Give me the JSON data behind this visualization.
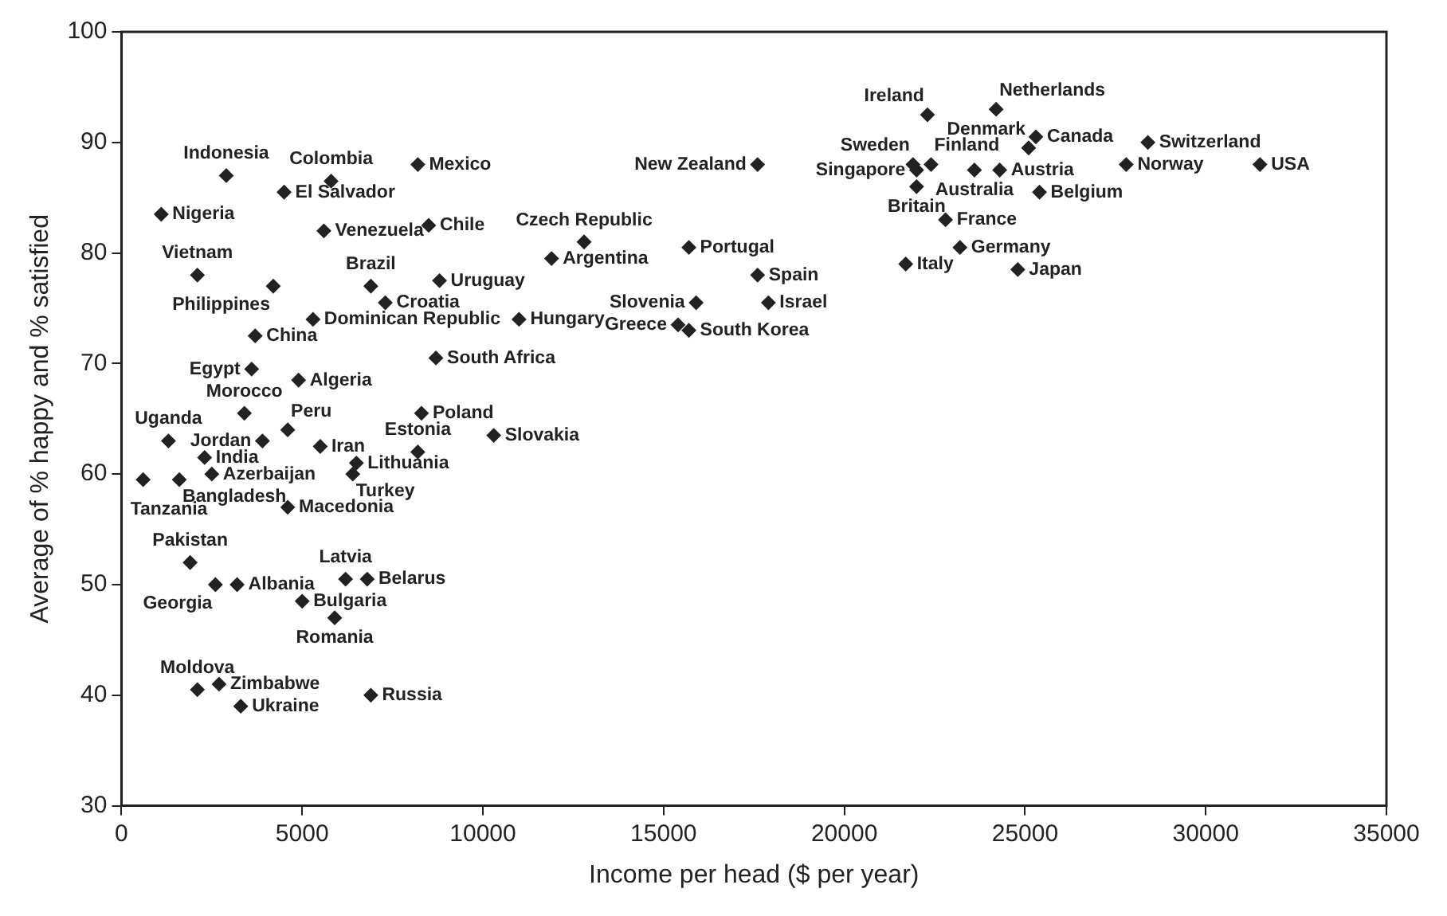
{
  "chart_data": {
    "type": "scatter",
    "xlabel": "Income per head ($ per year)",
    "ylabel": "Average of % happy and % satisfied",
    "xlim": [
      0,
      35000
    ],
    "xticks": [
      0,
      5000,
      10000,
      15000,
      20000,
      25000,
      30000,
      35000
    ],
    "ylim": [
      30,
      100
    ],
    "yticks": [
      30,
      40,
      50,
      60,
      70,
      80,
      90,
      100
    ],
    "grid": false,
    "legend": false,
    "marker": "diamond",
    "series": [
      {
        "color": "#222222",
        "x": [
          2900,
          5800,
          8200,
          4500,
          1100,
          5600,
          8500,
          11900,
          2100,
          4200,
          6900,
          8800,
          7300,
          5300,
          11000,
          3700,
          8700,
          3600,
          4900,
          8300,
          3400,
          4600,
          10300,
          1300,
          3900,
          5500,
          8200,
          2300,
          6500,
          6400,
          2500,
          1600,
          600,
          4600,
          1900,
          2600,
          3200,
          6200,
          6800,
          5000,
          5900,
          2100,
          2700,
          6900,
          3300,
          17600,
          12800,
          15700,
          17600,
          17900,
          15900,
          15400,
          15700,
          22300,
          24200,
          25100,
          25300,
          21900,
          22000,
          22000,
          22400,
          23600,
          24300,
          28400,
          27800,
          31500,
          25400,
          22800,
          23200,
          21700,
          24800
        ],
        "values": [
          87,
          86.5,
          88,
          85.5,
          83.5,
          82,
          82.5,
          79.5,
          78,
          77,
          77,
          77.5,
          75.5,
          74,
          74,
          72.5,
          70.5,
          69.5,
          68.5,
          65.5,
          65.5,
          64,
          63.5,
          63,
          63,
          62.5,
          62,
          61.5,
          61,
          60,
          60,
          59.5,
          59.5,
          57,
          52,
          50,
          50,
          50.5,
          50.5,
          48.5,
          47,
          40.5,
          41,
          40,
          39,
          88,
          81,
          80.5,
          78,
          75.5,
          75.5,
          73.5,
          73,
          92.5,
          93,
          89.5,
          90.5,
          88,
          87.5,
          86,
          88,
          87.5,
          87.5,
          90,
          88,
          88,
          85.5,
          83,
          80.5,
          79,
          78.5
        ]
      }
    ],
    "annotations": [
      {
        "text": "Indonesia",
        "x": 2900,
        "y": 87
      },
      {
        "text": "Colombia",
        "x": 5800,
        "y": 86.5
      },
      {
        "text": "Mexico",
        "x": 8200,
        "y": 88
      },
      {
        "text": "El Salvador",
        "x": 4500,
        "y": 85.5
      },
      {
        "text": "Nigeria",
        "x": 1100,
        "y": 83.5
      },
      {
        "text": "Venezuela",
        "x": 5600,
        "y": 82
      },
      {
        "text": "Chile",
        "x": 8500,
        "y": 82.5
      },
      {
        "text": "Argentina",
        "x": 11900,
        "y": 79.5
      },
      {
        "text": "Vietnam",
        "x": 2100,
        "y": 78
      },
      {
        "text": "Philippines",
        "x": 4200,
        "y": 77
      },
      {
        "text": "Brazil",
        "x": 6900,
        "y": 77
      },
      {
        "text": "Uruguay",
        "x": 8800,
        "y": 77.5
      },
      {
        "text": "Croatia",
        "x": 7300,
        "y": 75.5
      },
      {
        "text": "Dominican Republic",
        "x": 5300,
        "y": 74
      },
      {
        "text": "Hungary",
        "x": 11000,
        "y": 74
      },
      {
        "text": "China",
        "x": 3700,
        "y": 72.5
      },
      {
        "text": "South Africa",
        "x": 8700,
        "y": 70.5
      },
      {
        "text": "Egypt",
        "x": 3600,
        "y": 69.5
      },
      {
        "text": "Algeria",
        "x": 4900,
        "y": 68.5
      },
      {
        "text": "Poland",
        "x": 8300,
        "y": 65.5
      },
      {
        "text": "Morocco",
        "x": 3400,
        "y": 65.5
      },
      {
        "text": "Peru",
        "x": 4600,
        "y": 64
      },
      {
        "text": "Slovakia",
        "x": 10300,
        "y": 63.5
      },
      {
        "text": "Uganda",
        "x": 1300,
        "y": 63
      },
      {
        "text": "Jordan",
        "x": 3900,
        "y": 63
      },
      {
        "text": "Iran",
        "x": 5500,
        "y": 62.5
      },
      {
        "text": "Estonia",
        "x": 8200,
        "y": 62
      },
      {
        "text": "India",
        "x": 2300,
        "y": 61.5
      },
      {
        "text": "Lithuania",
        "x": 6500,
        "y": 61
      },
      {
        "text": "Turkey",
        "x": 6400,
        "y": 60
      },
      {
        "text": "Azerbaijan",
        "x": 2500,
        "y": 60
      },
      {
        "text": "Bangladesh",
        "x": 1600,
        "y": 59.5
      },
      {
        "text": "Tanzania",
        "x": 600,
        "y": 59.5
      },
      {
        "text": "Macedonia",
        "x": 4600,
        "y": 57
      },
      {
        "text": "Pakistan",
        "x": 1900,
        "y": 52
      },
      {
        "text": "Georgia",
        "x": 2600,
        "y": 50
      },
      {
        "text": "Albania",
        "x": 3200,
        "y": 50
      },
      {
        "text": "Latvia",
        "x": 6200,
        "y": 50.5
      },
      {
        "text": "Belarus",
        "x": 6800,
        "y": 50.5
      },
      {
        "text": "Bulgaria",
        "x": 5000,
        "y": 48.5
      },
      {
        "text": "Romania",
        "x": 5900,
        "y": 47
      },
      {
        "text": "Moldova",
        "x": 2100,
        "y": 40.5
      },
      {
        "text": "Zimbabwe",
        "x": 2700,
        "y": 41
      },
      {
        "text": "Russia",
        "x": 6900,
        "y": 40
      },
      {
        "text": "Ukraine",
        "x": 3300,
        "y": 39
      },
      {
        "text": "New Zealand",
        "x": 17600,
        "y": 88
      },
      {
        "text": "Czech Republic",
        "x": 12800,
        "y": 81
      },
      {
        "text": "Portugal",
        "x": 15700,
        "y": 80.5
      },
      {
        "text": "Spain",
        "x": 17600,
        "y": 78
      },
      {
        "text": "Israel",
        "x": 17900,
        "y": 75.5
      },
      {
        "text": "Slovenia",
        "x": 15900,
        "y": 75.5
      },
      {
        "text": "Greece",
        "x": 15400,
        "y": 73.5
      },
      {
        "text": "South Korea",
        "x": 15700,
        "y": 73
      },
      {
        "text": "Ireland",
        "x": 22300,
        "y": 92.5
      },
      {
        "text": "Netherlands",
        "x": 24200,
        "y": 93
      },
      {
        "text": "Denmark",
        "x": 25100,
        "y": 89.5
      },
      {
        "text": "Canada",
        "x": 25300,
        "y": 90.5
      },
      {
        "text": "Sweden",
        "x": 21900,
        "y": 88
      },
      {
        "text": "Singapore",
        "x": 22000,
        "y": 87.5
      },
      {
        "text": "Britain",
        "x": 22000,
        "y": 86
      },
      {
        "text": "Finland",
        "x": 22400,
        "y": 88
      },
      {
        "text": "Australia",
        "x": 23600,
        "y": 87.5
      },
      {
        "text": "Austria",
        "x": 24300,
        "y": 87.5
      },
      {
        "text": "Switzerland",
        "x": 28400,
        "y": 90
      },
      {
        "text": "Norway",
        "x": 27800,
        "y": 88
      },
      {
        "text": "USA",
        "x": 31500,
        "y": 88
      },
      {
        "text": "Belgium",
        "x": 25400,
        "y": 85.5
      },
      {
        "text": "France",
        "x": 22800,
        "y": 83
      },
      {
        "text": "Germany",
        "x": 23200,
        "y": 80.5
      },
      {
        "text": "Italy",
        "x": 21700,
        "y": 79
      },
      {
        "text": "Japan",
        "x": 24800,
        "y": 78.5
      }
    ]
  }
}
